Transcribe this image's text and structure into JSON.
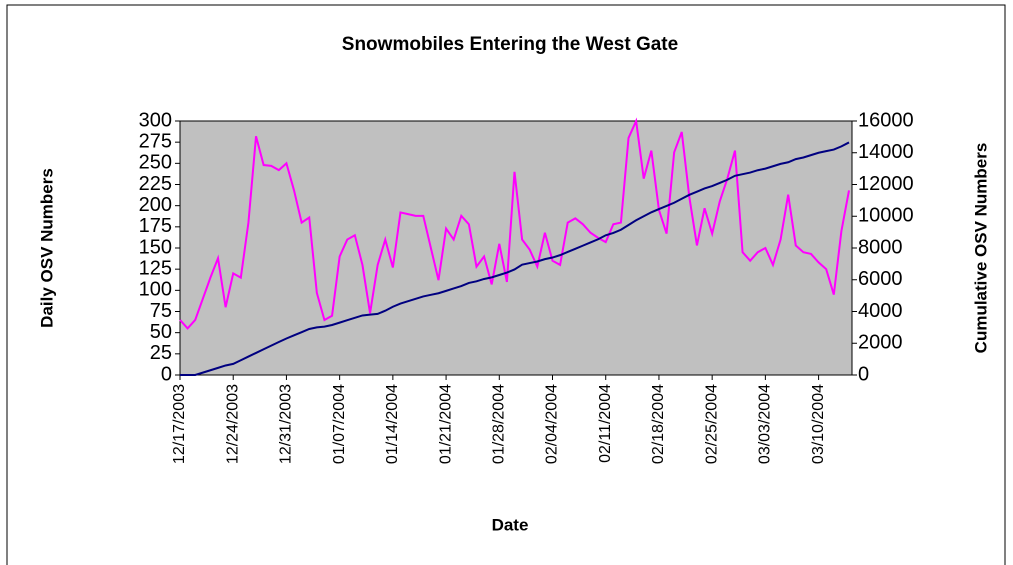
{
  "chart_data": {
    "type": "line",
    "title": "Snowmobiles Entering the West Gate",
    "x_label": "Date",
    "y_label": "Daily OSV Numbers",
    "y2_label": "Cumulative OSV Numbers",
    "categories": [
      "12/17/2003",
      null,
      null,
      null,
      null,
      null,
      null,
      "12/24/2003",
      null,
      null,
      null,
      null,
      null,
      null,
      "12/31/2003",
      null,
      null,
      null,
      null,
      null,
      null,
      "01/07/2004",
      null,
      null,
      null,
      null,
      null,
      null,
      "01/14/2004",
      null,
      null,
      null,
      null,
      null,
      null,
      "01/21/2004",
      null,
      null,
      null,
      null,
      null,
      null,
      "01/28/2004",
      null,
      null,
      null,
      null,
      null,
      null,
      "02/04/2004",
      null,
      null,
      null,
      null,
      null,
      null,
      "02/11/2004",
      null,
      null,
      null,
      null,
      null,
      null,
      "02/18/2004",
      null,
      null,
      null,
      null,
      null,
      null,
      "02/25/2004",
      null,
      null,
      null,
      null,
      null,
      null,
      "03/03/2004",
      null,
      null,
      null,
      null,
      null,
      null,
      "03/10/2004",
      null,
      null,
      null,
      null
    ],
    "series": [
      {
        "color": "#ff00ff",
        "values": [
          65,
          55,
          65,
          90,
          115,
          138,
          80,
          120,
          115,
          180,
          282,
          248,
          247,
          242,
          250,
          218,
          180,
          186,
          97,
          65,
          70,
          140,
          160,
          165,
          130,
          73,
          130,
          160,
          127,
          192,
          190,
          188,
          188,
          150,
          112,
          173,
          160,
          188,
          178,
          128,
          140,
          107,
          155,
          110,
          240,
          160,
          148,
          128,
          168,
          135,
          130,
          180,
          185,
          178,
          168,
          162,
          157,
          178,
          180,
          280,
          300,
          232,
          265,
          195,
          167,
          263,
          287,
          210,
          153,
          197,
          167,
          205,
          232,
          265,
          145,
          135,
          145,
          150,
          130,
          160,
          213,
          153,
          145,
          143,
          133,
          125,
          95,
          170,
          218
        ]
      },
      {
        "color": "#000080",
        "axis": "y2",
        "values": [
          0,
          0,
          0,
          150,
          300,
          450,
          600,
          700,
          930,
          1160,
          1390,
          1620,
          1850,
          2080,
          2300,
          2500,
          2700,
          2900,
          3000,
          3050,
          3150,
          3300,
          3450,
          3600,
          3750,
          3800,
          3850,
          4050,
          4300,
          4500,
          4650,
          4800,
          4950,
          5050,
          5150,
          5300,
          5450,
          5600,
          5800,
          5900,
          6050,
          6150,
          6300,
          6450,
          6650,
          6950,
          7050,
          7150,
          7300,
          7400,
          7550,
          7750,
          7950,
          8150,
          8350,
          8550,
          8800,
          8950,
          9150,
          9450,
          9750,
          10000,
          10250,
          10450,
          10650,
          10850,
          11100,
          11350,
          11550,
          11750,
          11900,
          12100,
          12300,
          12550,
          12650,
          12750,
          12900,
          13000,
          13150,
          13300,
          13400,
          13600,
          13700,
          13850,
          14000,
          14100,
          14200,
          14400,
          14650
        ]
      }
    ],
    "ylim": [
      0,
      300
    ],
    "yticks": [
      0,
      25,
      50,
      75,
      100,
      125,
      150,
      175,
      200,
      225,
      250,
      275,
      300
    ],
    "y2lim": [
      0,
      16000
    ],
    "y2ticks": [
      0,
      2000,
      4000,
      6000,
      8000,
      10000,
      12000,
      14000,
      16000
    ],
    "plot_background": "#c0c0c0"
  }
}
